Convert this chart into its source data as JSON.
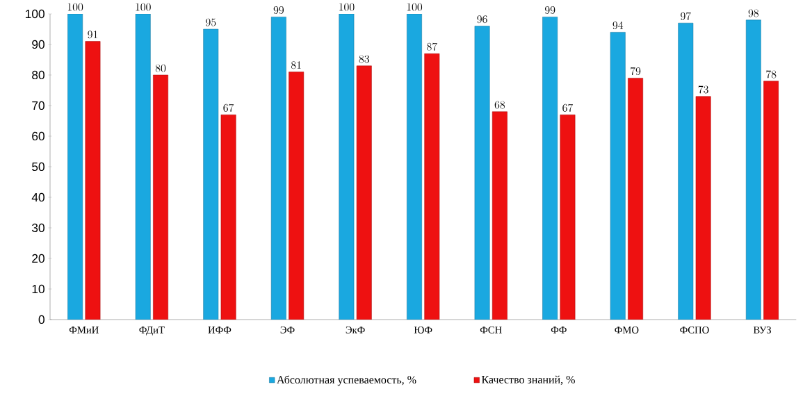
{
  "chart_data": {
    "type": "bar",
    "categories": [
      "ФМиИ",
      "ФДиТ",
      "ИФФ",
      "ЭФ",
      "ЭкФ",
      "ЮФ",
      "ФСН",
      "ФФ",
      "ФМО",
      "ФСПО",
      "ВУЗ"
    ],
    "series": [
      {
        "name": "Абсолютная успеваемость, %",
        "color": "#1aa8e0",
        "values": [
          100,
          100,
          95,
          99,
          100,
          100,
          96,
          99,
          94,
          97,
          98
        ]
      },
      {
        "name": "Качество знаний, %",
        "color": "#ee1111",
        "values": [
          91,
          80,
          67,
          81,
          83,
          87,
          68,
          67,
          79,
          73,
          78
        ]
      }
    ],
    "ylim": [
      0,
      100
    ],
    "yticks": [
      0,
      10,
      20,
      30,
      40,
      50,
      60,
      70,
      80,
      90,
      100
    ],
    "data_labels": true,
    "legend": "bottom",
    "grid": false
  }
}
